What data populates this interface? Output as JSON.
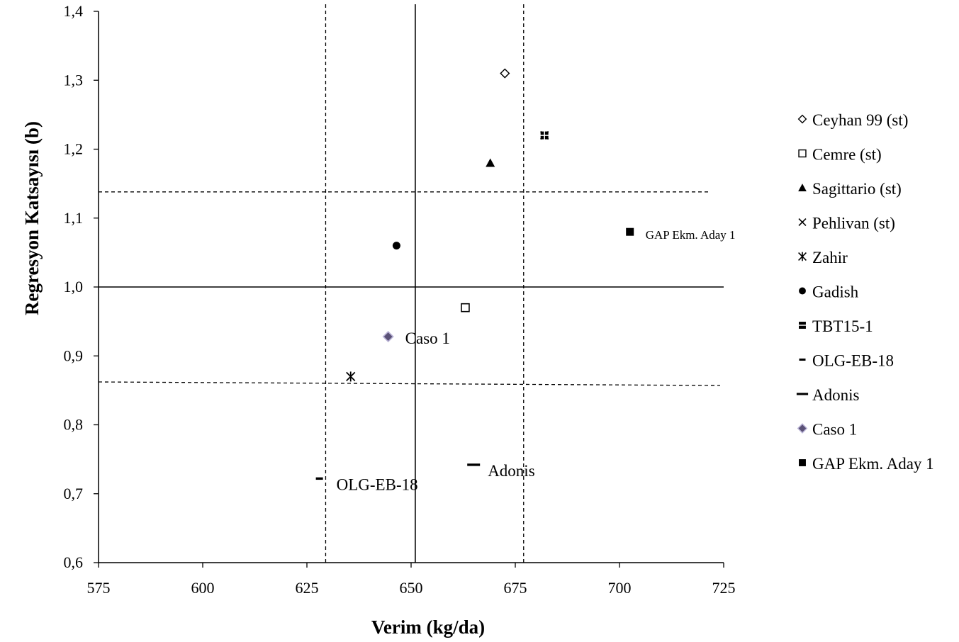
{
  "chart_data": {
    "type": "scatter",
    "xlabel": "Verim (kg/da)",
    "ylabel": "Regresyon Katsayısı (b)",
    "xlim": [
      575,
      725
    ],
    "ylim": [
      0.6,
      1.4
    ],
    "x_ticks": [
      "575",
      "600",
      "625",
      "650",
      "675",
      "700",
      "725"
    ],
    "y_ticks": [
      "0,6",
      "0,7",
      "0,8",
      "0,9",
      "1,0",
      "1,1",
      "1,2",
      "1,3",
      "1,4"
    ],
    "grid": false,
    "legend_position": "right",
    "reference_lines": {
      "vertical_solid_x": 651,
      "vertical_dashed_x": [
        629.5,
        677
      ],
      "horizontal_solid_y": 1.0,
      "horizontal_dashed_y": [
        1.138,
        0.86
      ]
    },
    "series": [
      {
        "name": "Ceyhan 99 (st)",
        "marker": "diamond-open",
        "points": [
          {
            "x": 672.5,
            "y": 1.31
          }
        ]
      },
      {
        "name": "Cemre (st)",
        "marker": "square-open",
        "points": [
          {
            "x": 663,
            "y": 0.97
          }
        ]
      },
      {
        "name": "Sagittario (st)",
        "marker": "triangle",
        "points": [
          {
            "x": 669,
            "y": 1.18
          }
        ]
      },
      {
        "name": "Pehlivan (st)",
        "marker": "x",
        "points": [
          {
            "x": 682,
            "y": 1.22
          }
        ]
      },
      {
        "name": "Zahir",
        "marker": "star",
        "points": [
          {
            "x": 635.5,
            "y": 0.87
          }
        ]
      },
      {
        "name": "Gadish",
        "marker": "circle",
        "points": [
          {
            "x": 646.5,
            "y": 1.06
          }
        ]
      },
      {
        "name": "TBT15-1",
        "marker": "square",
        "points": [
          {
            "x": 682,
            "y": 1.22
          }
        ]
      },
      {
        "name": "OLG-EB-18",
        "marker": "dash-small",
        "points": [
          {
            "x": 628,
            "y": 0.722
          }
        ],
        "label": "OLG-EB-18"
      },
      {
        "name": "Adonis",
        "marker": "dash",
        "points": [
          {
            "x": 665,
            "y": 0.742
          }
        ],
        "label": "Adonis"
      },
      {
        "name": "Caso 1",
        "marker": "diamond-purple",
        "points": [
          {
            "x": 644.5,
            "y": 0.928
          }
        ],
        "label": "Caso 1"
      },
      {
        "name": "GAP Ekm. Aday 1",
        "marker": "square",
        "points": [
          {
            "x": 702.5,
            "y": 1.08
          }
        ],
        "label": "GAP Ekm. Aday 1"
      }
    ],
    "colors": {
      "main": "#000000",
      "caso_fill": "#5b5277",
      "caso_stroke": "#b9b3d6"
    }
  }
}
